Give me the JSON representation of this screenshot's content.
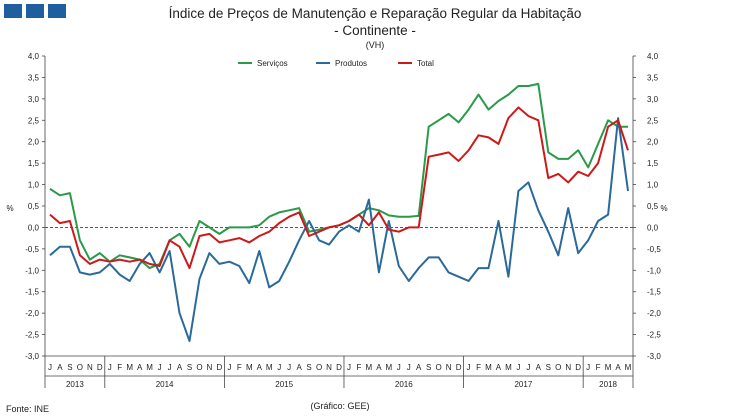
{
  "header": {
    "title_line1": "Índice de Preços de Manutenção e Reparação Regular da Habitação",
    "title_line2": "- Continente -",
    "subtitle": "(VH)"
  },
  "footer": {
    "source": "Fonte: INE",
    "credit": "(Gráfico: GEE)"
  },
  "colors": {
    "servicos": "#2a9a4a",
    "produtos": "#2a6a9a",
    "total": "#cc1a1a",
    "logo": "#1f5fa0"
  },
  "chart_data": {
    "type": "line",
    "ylabel_left": "%",
    "ylabel_right": "%",
    "ylim": [
      -3.0,
      4.0
    ],
    "yticks": [
      "4,0",
      "3,5",
      "3,0",
      "2,5",
      "2,0",
      "1,5",
      "1,0",
      "0,5",
      "0,0",
      "-0,5",
      "-1,0",
      "-1,5",
      "-2,0",
      "-2,5",
      "-3,0"
    ],
    "yticks_right": [
      "4,0",
      "3,5",
      "3,0",
      "2,5",
      "2,0",
      "1,5",
      "1,0",
      "0,5",
      "0,0",
      "-0,5",
      "-1,0",
      "-1,5",
      "-2,0",
      "-2,5",
      "-3,0"
    ],
    "months": [
      "J",
      "A",
      "S",
      "O",
      "N",
      "D",
      "J",
      "F",
      "M",
      "A",
      "M",
      "J",
      "J",
      "A",
      "S",
      "O",
      "N",
      "D",
      "J",
      "F",
      "M",
      "A",
      "M",
      "J",
      "J",
      "A",
      "S",
      "O",
      "N",
      "D",
      "J",
      "F",
      "M",
      "A",
      "M",
      "J",
      "J",
      "A",
      "S",
      "O",
      "N",
      "D",
      "J",
      "F",
      "M",
      "A",
      "M",
      "J",
      "J",
      "A",
      "S",
      "O",
      "N",
      "D",
      "J",
      "F",
      "M",
      "A",
      "M"
    ],
    "years": [
      {
        "label": "2013",
        "start": 0,
        "count": 6
      },
      {
        "label": "2014",
        "start": 6,
        "count": 12
      },
      {
        "label": "2015",
        "start": 18,
        "count": 12
      },
      {
        "label": "2016",
        "start": 30,
        "count": 12
      },
      {
        "label": "2017",
        "start": 42,
        "count": 12
      },
      {
        "label": "2018",
        "start": 54,
        "count": 5
      }
    ],
    "series": [
      {
        "name": "Serviços",
        "color_key": "servicos",
        "values": [
          0.9,
          0.75,
          0.8,
          -0.3,
          -0.75,
          -0.6,
          -0.8,
          -0.65,
          -0.7,
          -0.75,
          -0.95,
          -0.85,
          -0.3,
          -0.15,
          -0.45,
          0.15,
          0.0,
          -0.15,
          0.0,
          0.0,
          0.0,
          0.05,
          0.25,
          0.35,
          0.4,
          0.45,
          -0.1,
          -0.05,
          0.0,
          0.05,
          0.15,
          0.3,
          0.45,
          0.4,
          0.28,
          0.25,
          0.25,
          0.27,
          2.35,
          2.5,
          2.65,
          2.45,
          2.75,
          3.1,
          2.75,
          2.95,
          3.1,
          3.3,
          3.3,
          3.35,
          1.75,
          1.6,
          1.6,
          1.8,
          1.4,
          1.95,
          2.5,
          2.35,
          2.35
        ]
      },
      {
        "name": "Produtos",
        "color_key": "produtos",
        "values": [
          -0.65,
          -0.45,
          -0.45,
          -1.05,
          -1.1,
          -1.05,
          -0.85,
          -1.1,
          -1.25,
          -0.85,
          -0.6,
          -1.05,
          -0.55,
          -2.0,
          -2.65,
          -1.2,
          -0.6,
          -0.85,
          -0.8,
          -0.9,
          -1.3,
          -0.55,
          -1.4,
          -1.25,
          -0.8,
          -0.3,
          0.15,
          -0.3,
          -0.4,
          -0.1,
          0.05,
          -0.1,
          0.65,
          -1.05,
          0.15,
          -0.9,
          -1.25,
          -0.95,
          -0.7,
          -0.7,
          -1.05,
          -1.15,
          -1.25,
          -0.95,
          -0.95,
          0.15,
          -1.15,
          0.85,
          1.05,
          0.4,
          -0.1,
          -0.65,
          0.45,
          -0.6,
          -0.3,
          0.15,
          0.3,
          2.55,
          0.85
        ]
      },
      {
        "name": "Total",
        "color_key": "total",
        "values": [
          0.3,
          0.1,
          0.15,
          -0.65,
          -0.85,
          -0.75,
          -0.8,
          -0.75,
          -0.8,
          -0.75,
          -0.85,
          -0.9,
          -0.3,
          -0.45,
          -0.95,
          -0.2,
          -0.15,
          -0.35,
          -0.3,
          -0.25,
          -0.35,
          -0.2,
          -0.1,
          0.1,
          0.25,
          0.35,
          -0.2,
          -0.1,
          0.0,
          0.05,
          0.15,
          0.3,
          0.05,
          0.35,
          -0.05,
          -0.1,
          0.0,
          0.0,
          1.65,
          1.7,
          1.75,
          1.55,
          1.8,
          2.15,
          2.1,
          1.95,
          2.55,
          2.8,
          2.6,
          2.5,
          1.15,
          1.25,
          1.05,
          1.3,
          1.2,
          1.5,
          2.35,
          2.5,
          1.8
        ]
      }
    ],
    "legend": [
      "Serviços",
      "Produtos",
      "Total"
    ],
    "legend_position": "top-center"
  }
}
